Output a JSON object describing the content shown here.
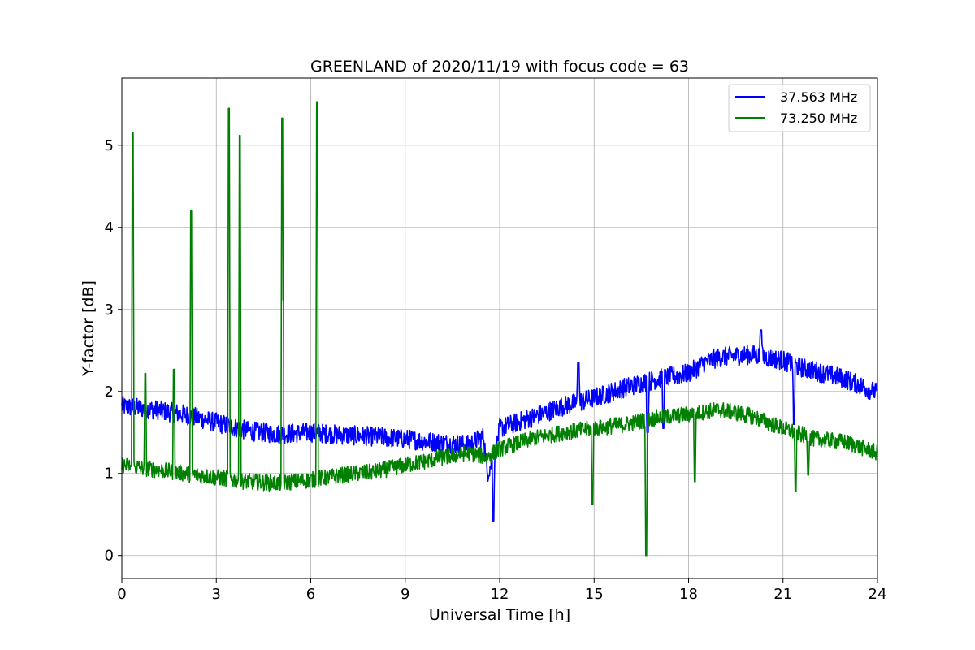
{
  "chart_data": {
    "type": "line",
    "title": "GREENLAND of 2020/11/19 with focus code = 63",
    "xlabel": "Universal Time [h]",
    "ylabel": "Y-factor [dB]",
    "xlim": [
      0,
      24
    ],
    "ylim": [
      -0.28,
      5.82
    ],
    "xticks": [
      0,
      3,
      6,
      9,
      12,
      15,
      18,
      21,
      24
    ],
    "yticks": [
      0,
      1,
      2,
      3,
      4,
      5
    ],
    "grid": true,
    "legend_position": "top-right",
    "series": [
      {
        "name": "37.563 MHz",
        "color": "#0000ff",
        "noise_amplitude": 0.12,
        "x": [
          0,
          1,
          2,
          3,
          4,
          5,
          6,
          7,
          8,
          9,
          10,
          11,
          11.5,
          11.6,
          11.85,
          12,
          13,
          14,
          15,
          16,
          17,
          18,
          18.5,
          19,
          20,
          21,
          21.5,
          22,
          23,
          24
        ],
        "y": [
          1.82,
          1.78,
          1.72,
          1.62,
          1.52,
          1.48,
          1.5,
          1.47,
          1.45,
          1.42,
          1.38,
          1.35,
          1.45,
          1.0,
          1.2,
          1.55,
          1.68,
          1.82,
          1.92,
          2.05,
          2.15,
          2.22,
          2.35,
          2.42,
          2.45,
          2.38,
          2.3,
          2.25,
          2.15,
          1.98
        ],
        "spikes": [
          {
            "x": 11.8,
            "y": 0.42
          },
          {
            "x": 21.35,
            "y": 1.6
          },
          {
            "x": 16.7,
            "y": 1.5
          },
          {
            "x": 17.2,
            "y": 1.55
          },
          {
            "x": 14.5,
            "y": 2.35
          },
          {
            "x": 20.3,
            "y": 2.75
          }
        ]
      },
      {
        "name": "73.250 MHz",
        "color": "#008000",
        "noise_amplitude": 0.1,
        "x": [
          0,
          1,
          2,
          3,
          4,
          5,
          6,
          7,
          8,
          9,
          10,
          11,
          11.6,
          12,
          13,
          14,
          15,
          16,
          17,
          18,
          19,
          20,
          21,
          22,
          23,
          24
        ],
        "y": [
          1.1,
          1.05,
          1.0,
          0.95,
          0.9,
          0.88,
          0.92,
          0.98,
          1.02,
          1.1,
          1.18,
          1.25,
          1.2,
          1.3,
          1.42,
          1.5,
          1.55,
          1.6,
          1.68,
          1.72,
          1.78,
          1.7,
          1.55,
          1.42,
          1.38,
          1.25
        ],
        "spikes": [
          {
            "x": 0.35,
            "y": 5.15
          },
          {
            "x": 0.75,
            "y": 2.22
          },
          {
            "x": 1.65,
            "y": 2.27
          },
          {
            "x": 2.2,
            "y": 4.2
          },
          {
            "x": 3.4,
            "y": 5.45
          },
          {
            "x": 3.75,
            "y": 5.12
          },
          {
            "x": 5.1,
            "y": 5.33
          },
          {
            "x": 6.2,
            "y": 5.53
          },
          {
            "x": 14.95,
            "y": 0.62
          },
          {
            "x": 16.65,
            "y": 0.0
          },
          {
            "x": 18.2,
            "y": 0.9
          },
          {
            "x": 21.4,
            "y": 0.78
          },
          {
            "x": 21.8,
            "y": 0.98
          }
        ]
      }
    ]
  }
}
